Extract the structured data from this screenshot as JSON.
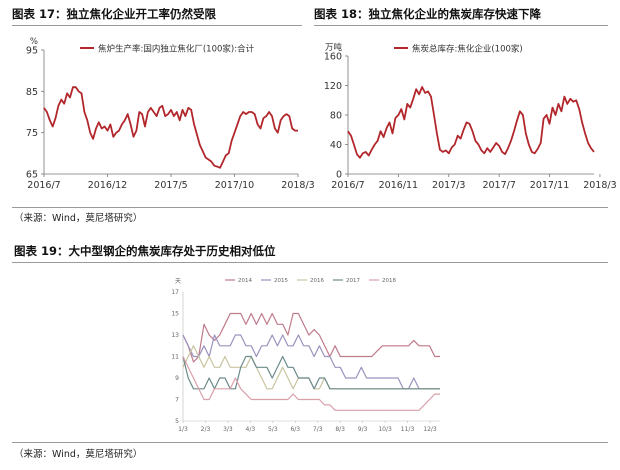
{
  "charts": {
    "c17": {
      "title": "图表 17：独立焦化企业开工率仍然受限",
      "unit": "%",
      "legend": "焦炉生产率:国内独立焦化厂(100家):合计",
      "source": "（来源：Wind，莫尼塔研究）"
    },
    "c18": {
      "title": "图表 18：独立焦化企业的焦炭库存快速下降",
      "unit": "万吨",
      "legend": "焦炭总库存:焦化企业(100家)"
    },
    "c19": {
      "title": "图表 19：大中型钢企的焦炭库存处于历史相对低位",
      "unit": "天",
      "source": "（来源：Wind，莫尼塔研究）"
    }
  },
  "chart_data": [
    {
      "type": "line",
      "title": "图表 17：独立焦化企业开工率仍然受限",
      "ylabel": "%",
      "ylim": [
        65,
        95
      ],
      "yticks": [
        65,
        75,
        85,
        95
      ],
      "xticks": [
        "2016/7",
        "2016/12",
        "2017/5",
        "2017/10",
        "2018/3"
      ],
      "xtick_index": [
        0,
        22,
        44,
        66,
        88
      ],
      "series": [
        {
          "name": "焦炉生产率:国内独立焦化厂(100家):合计",
          "color": "#b2272c",
          "values": [
            81,
            80,
            78,
            76.5,
            78.5,
            81.5,
            83,
            82,
            84.5,
            83.5,
            86,
            86,
            85,
            84.5,
            80,
            78,
            75,
            73.5,
            76,
            77.5,
            76,
            76.5,
            75.5,
            77,
            74,
            75,
            75.5,
            77,
            78,
            79.5,
            77,
            74,
            75.5,
            80,
            79.5,
            76.5,
            80,
            81,
            80,
            79,
            81,
            81.5,
            79,
            79.5,
            80.5,
            79,
            80,
            78,
            80.5,
            79,
            81,
            80.5,
            77,
            74.5,
            72,
            70.5,
            69,
            68.5,
            68,
            67,
            66.8,
            66.5,
            68,
            69.5,
            70,
            73,
            75,
            77,
            79,
            80,
            79.5,
            80,
            80,
            79.5,
            77,
            76,
            78.5,
            79,
            80,
            79,
            76,
            75,
            78,
            79,
            79.5,
            79,
            76,
            75.5,
            75.5
          ]
        }
      ]
    },
    {
      "type": "line",
      "title": "图表 18：独立焦化企业的焦炭库存快速下降",
      "ylabel": "万吨",
      "ylim": [
        0,
        160
      ],
      "yticks": [
        0,
        40,
        80,
        120,
        160
      ],
      "xticks": [
        "2016/7",
        "2016/11",
        "2017/3",
        "2017/7",
        "2017/11",
        "2018/3"
      ],
      "xtick_index": [
        0,
        17,
        34,
        51,
        68,
        85
      ],
      "series": [
        {
          "name": "焦炭总库存:焦化企业(100家)",
          "color": "#b2272c",
          "values": [
            58,
            52,
            40,
            27,
            22,
            28,
            30,
            25,
            33,
            40,
            45,
            58,
            50,
            62,
            70,
            55,
            76,
            80,
            88,
            74,
            95,
            90,
            102,
            115,
            108,
            118,
            110,
            112,
            105,
            80,
            55,
            33,
            30,
            32,
            28,
            36,
            40,
            52,
            48,
            60,
            70,
            68,
            58,
            45,
            40,
            32,
            28,
            35,
            30,
            36,
            42,
            38,
            30,
            27,
            35,
            45,
            58,
            72,
            85,
            80,
            55,
            40,
            30,
            28,
            34,
            42,
            75,
            80,
            68,
            90,
            80,
            95,
            85,
            105,
            95,
            102,
            98,
            100,
            88,
            70,
            55,
            42,
            35,
            30
          ]
        }
      ]
    },
    {
      "type": "line",
      "title": "图表 19：大中型钢企的焦炭库存处于历史相对低位",
      "ylabel": "天",
      "ylim": [
        5,
        17
      ],
      "yticks": [
        5,
        7,
        9,
        11,
        13,
        15,
        17
      ],
      "xticks": [
        "1/3",
        "2/3",
        "3/3",
        "4/3",
        "5/3",
        "6/3",
        "7/3",
        "8/3",
        "9/3",
        "10/3",
        "11/3",
        "12/3"
      ],
      "series": [
        {
          "name": "2014",
          "color": "#c07a8a",
          "values": [
            13,
            12,
            10.5,
            11,
            14,
            13,
            12.5,
            13,
            14,
            15,
            15,
            15,
            14,
            15,
            14,
            15,
            14,
            15,
            14,
            14,
            13,
            15,
            15,
            14,
            13,
            13.5,
            13,
            12,
            11,
            12,
            11,
            11,
            11,
            11,
            11,
            11,
            11,
            11.5,
            12,
            12,
            12,
            12,
            12,
            12,
            12.5,
            12,
            12,
            12,
            11,
            11
          ]
        },
        {
          "name": "2015",
          "color": "#9a93bf",
          "values": [
            13,
            12,
            11,
            11,
            12,
            11,
            13,
            12,
            12,
            12,
            13,
            13,
            12,
            12,
            11,
            12,
            12,
            13,
            12,
            13,
            12,
            12,
            13,
            12,
            12,
            11,
            12,
            11,
            11,
            10,
            10,
            9,
            9,
            9,
            10,
            9,
            9,
            9,
            9,
            9,
            9,
            9,
            8,
            8,
            9,
            8,
            8,
            8,
            8,
            8
          ]
        },
        {
          "name": "2016",
          "color": "#c9c4a0",
          "values": [
            10,
            11,
            12,
            11,
            10,
            11,
            10,
            10,
            11,
            10,
            10,
            10,
            10,
            11,
            10,
            9,
            8,
            8,
            9,
            10,
            9,
            8,
            9,
            9,
            9,
            8,
            8,
            9,
            8,
            8,
            8,
            8,
            8,
            8,
            8,
            8,
            8,
            8,
            8,
            8,
            8,
            8,
            8,
            8,
            8,
            8,
            8,
            8,
            8,
            8
          ]
        },
        {
          "name": "2017",
          "color": "#6c8a8a",
          "values": [
            11,
            9,
            8,
            8,
            8,
            9,
            8,
            9,
            9,
            8,
            8,
            10,
            11,
            11,
            10,
            10,
            10,
            9,
            10,
            11,
            10,
            10,
            9,
            9,
            9,
            8,
            9,
            9,
            8,
            8,
            8,
            8,
            8,
            8,
            8,
            8,
            8,
            8,
            8,
            8,
            8,
            8,
            8,
            8,
            8,
            8,
            8,
            8,
            8,
            8
          ]
        },
        {
          "name": "2018",
          "color": "#d9a0aa",
          "values": [
            11,
            10,
            9,
            8,
            7,
            7,
            8,
            8,
            8,
            8,
            9,
            8,
            7.5,
            7,
            7,
            7,
            7,
            7,
            7,
            7,
            7,
            7.5,
            7,
            7,
            7,
            7,
            7,
            6.5,
            6.5,
            6,
            6,
            6,
            6,
            6,
            6,
            6,
            6,
            6,
            6,
            6,
            6,
            6,
            6,
            6,
            6,
            6,
            6.5,
            7,
            7.5,
            7.5
          ]
        }
      ]
    }
  ]
}
